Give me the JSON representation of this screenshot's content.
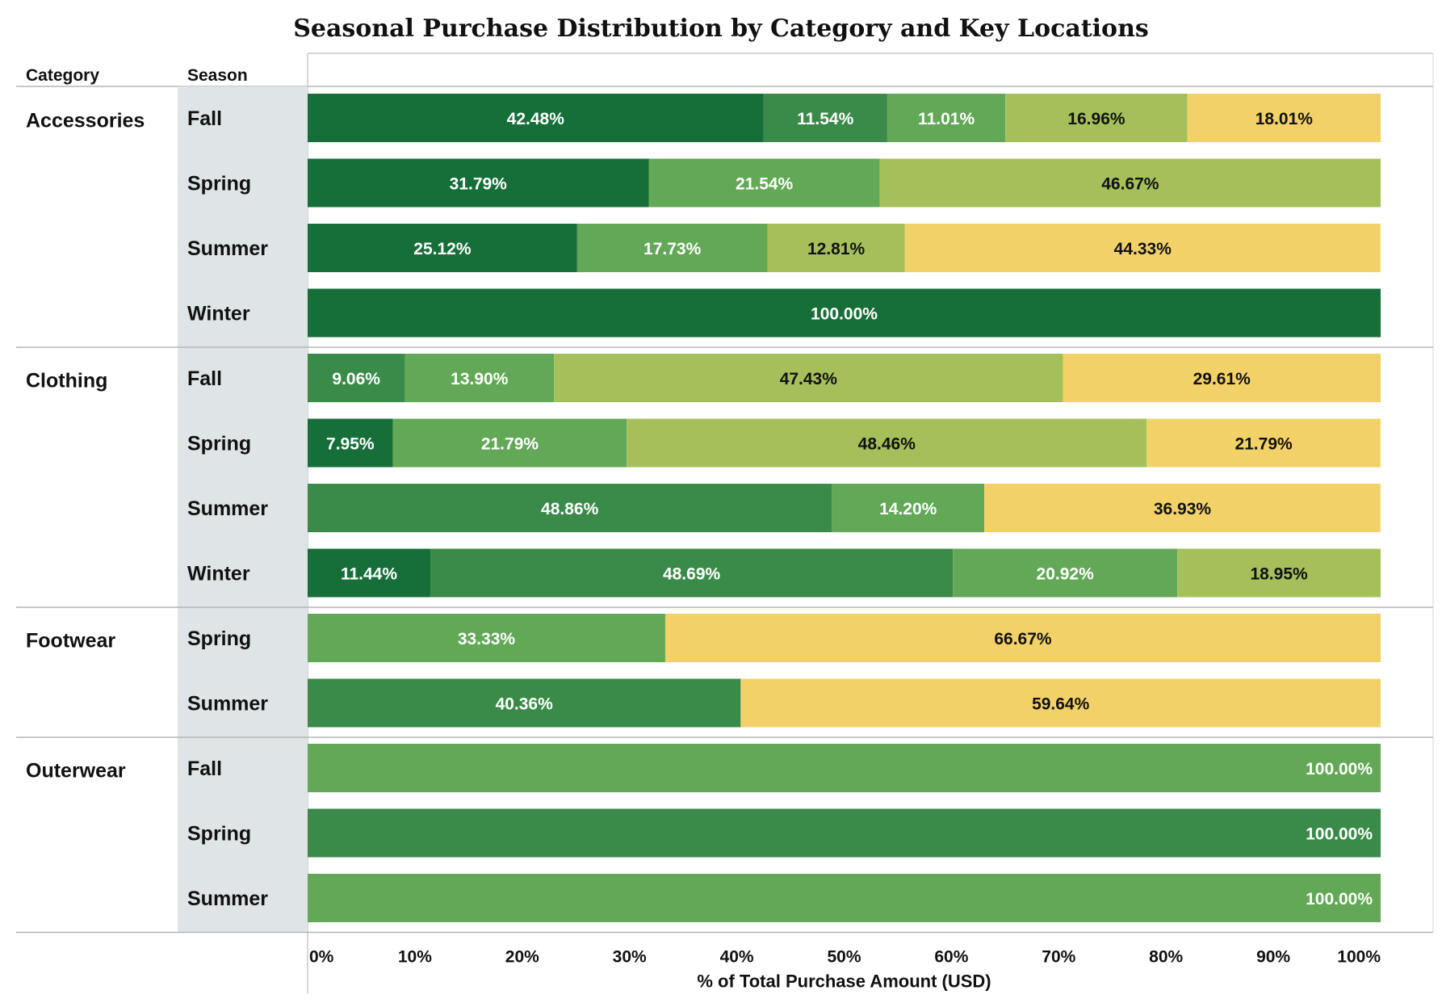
{
  "chart_data": {
    "type": "bar",
    "orientation": "horizontal",
    "stacked": true,
    "normalized": true,
    "title": "Seasonal Purchase Distribution by Category and Key Locations",
    "row_headers": [
      "Category",
      "Season"
    ],
    "xlabel": "% of Total Purchase Amount (USD)",
    "xlim": [
      0,
      100
    ],
    "x_ticks": [
      "0%",
      "10%",
      "20%",
      "30%",
      "40%",
      "50%",
      "60%",
      "70%",
      "80%",
      "90%",
      "100%"
    ],
    "grid": false,
    "legend": "none",
    "series_colors": [
      "#166f39",
      "#3a8b4a",
      "#62a856",
      "#a5c05a",
      "#f2d268"
    ],
    "label_colors": [
      "#ffffff",
      "#ffffff",
      "#ffffff",
      "#111111",
      "#111111"
    ],
    "groups": [
      {
        "category": "Accessories",
        "rows": [
          {
            "season": "Fall",
            "segments": [
              {
                "series": 0,
                "value": 42.48,
                "label": "42.48%"
              },
              {
                "series": 1,
                "value": 11.54,
                "label": "11.54%"
              },
              {
                "series": 2,
                "value": 11.01,
                "label": "11.01%"
              },
              {
                "series": 3,
                "value": 16.96,
                "label": "16.96%"
              },
              {
                "series": 4,
                "value": 18.01,
                "label": "18.01%"
              }
            ]
          },
          {
            "season": "Spring",
            "segments": [
              {
                "series": 0,
                "value": 31.79,
                "label": "31.79%"
              },
              {
                "series": 2,
                "value": 21.54,
                "label": "21.54%"
              },
              {
                "series": 3,
                "value": 46.67,
                "label": "46.67%"
              }
            ]
          },
          {
            "season": "Summer",
            "segments": [
              {
                "series": 0,
                "value": 25.12,
                "label": "25.12%"
              },
              {
                "series": 2,
                "value": 17.73,
                "label": "17.73%"
              },
              {
                "series": 3,
                "value": 12.81,
                "label": "12.81%"
              },
              {
                "series": 4,
                "value": 44.33,
                "label": "44.33%"
              }
            ]
          },
          {
            "season": "Winter",
            "segments": [
              {
                "series": 0,
                "value": 100.0,
                "label": "100.00%"
              }
            ]
          }
        ]
      },
      {
        "category": "Clothing",
        "rows": [
          {
            "season": "Fall",
            "segments": [
              {
                "series": 1,
                "value": 9.06,
                "label": "9.06%"
              },
              {
                "series": 2,
                "value": 13.9,
                "label": "13.90%"
              },
              {
                "series": 3,
                "value": 47.43,
                "label": "47.43%"
              },
              {
                "series": 4,
                "value": 29.61,
                "label": "29.61%"
              }
            ]
          },
          {
            "season": "Spring",
            "segments": [
              {
                "series": 0,
                "value": 7.95,
                "label": "7.95%"
              },
              {
                "series": 2,
                "value": 21.79,
                "label": "21.79%"
              },
              {
                "series": 3,
                "value": 48.46,
                "label": "48.46%"
              },
              {
                "series": 4,
                "value": 21.79,
                "label": "21.79%"
              }
            ]
          },
          {
            "season": "Summer",
            "segments": [
              {
                "series": 1,
                "value": 48.86,
                "label": "48.86%"
              },
              {
                "series": 2,
                "value": 14.2,
                "label": "14.20%"
              },
              {
                "series": 4,
                "value": 36.93,
                "label": "36.93%"
              }
            ]
          },
          {
            "season": "Winter",
            "segments": [
              {
                "series": 0,
                "value": 11.44,
                "label": "11.44%"
              },
              {
                "series": 1,
                "value": 48.69,
                "label": "48.69%"
              },
              {
                "series": 2,
                "value": 20.92,
                "label": "20.92%"
              },
              {
                "series": 3,
                "value": 18.95,
                "label": "18.95%"
              }
            ]
          }
        ]
      },
      {
        "category": "Footwear",
        "rows": [
          {
            "season": "Spring",
            "segments": [
              {
                "series": 2,
                "value": 33.33,
                "label": "33.33%"
              },
              {
                "series": 4,
                "value": 66.67,
                "label": "66.67%"
              }
            ]
          },
          {
            "season": "Summer",
            "segments": [
              {
                "series": 1,
                "value": 40.36,
                "label": "40.36%"
              },
              {
                "series": 4,
                "value": 59.64,
                "label": "59.64%"
              }
            ]
          }
        ]
      },
      {
        "category": "Outerwear",
        "rows": [
          {
            "season": "Fall",
            "segments": [
              {
                "series": 2,
                "value": 100.0,
                "label": "100.00%"
              }
            ]
          },
          {
            "season": "Spring",
            "segments": [
              {
                "series": 1,
                "value": 100.0,
                "label": "100.00%"
              }
            ]
          },
          {
            "season": "Summer",
            "segments": [
              {
                "series": 2,
                "value": 100.0,
                "label": "100.00%"
              }
            ]
          }
        ]
      }
    ]
  }
}
